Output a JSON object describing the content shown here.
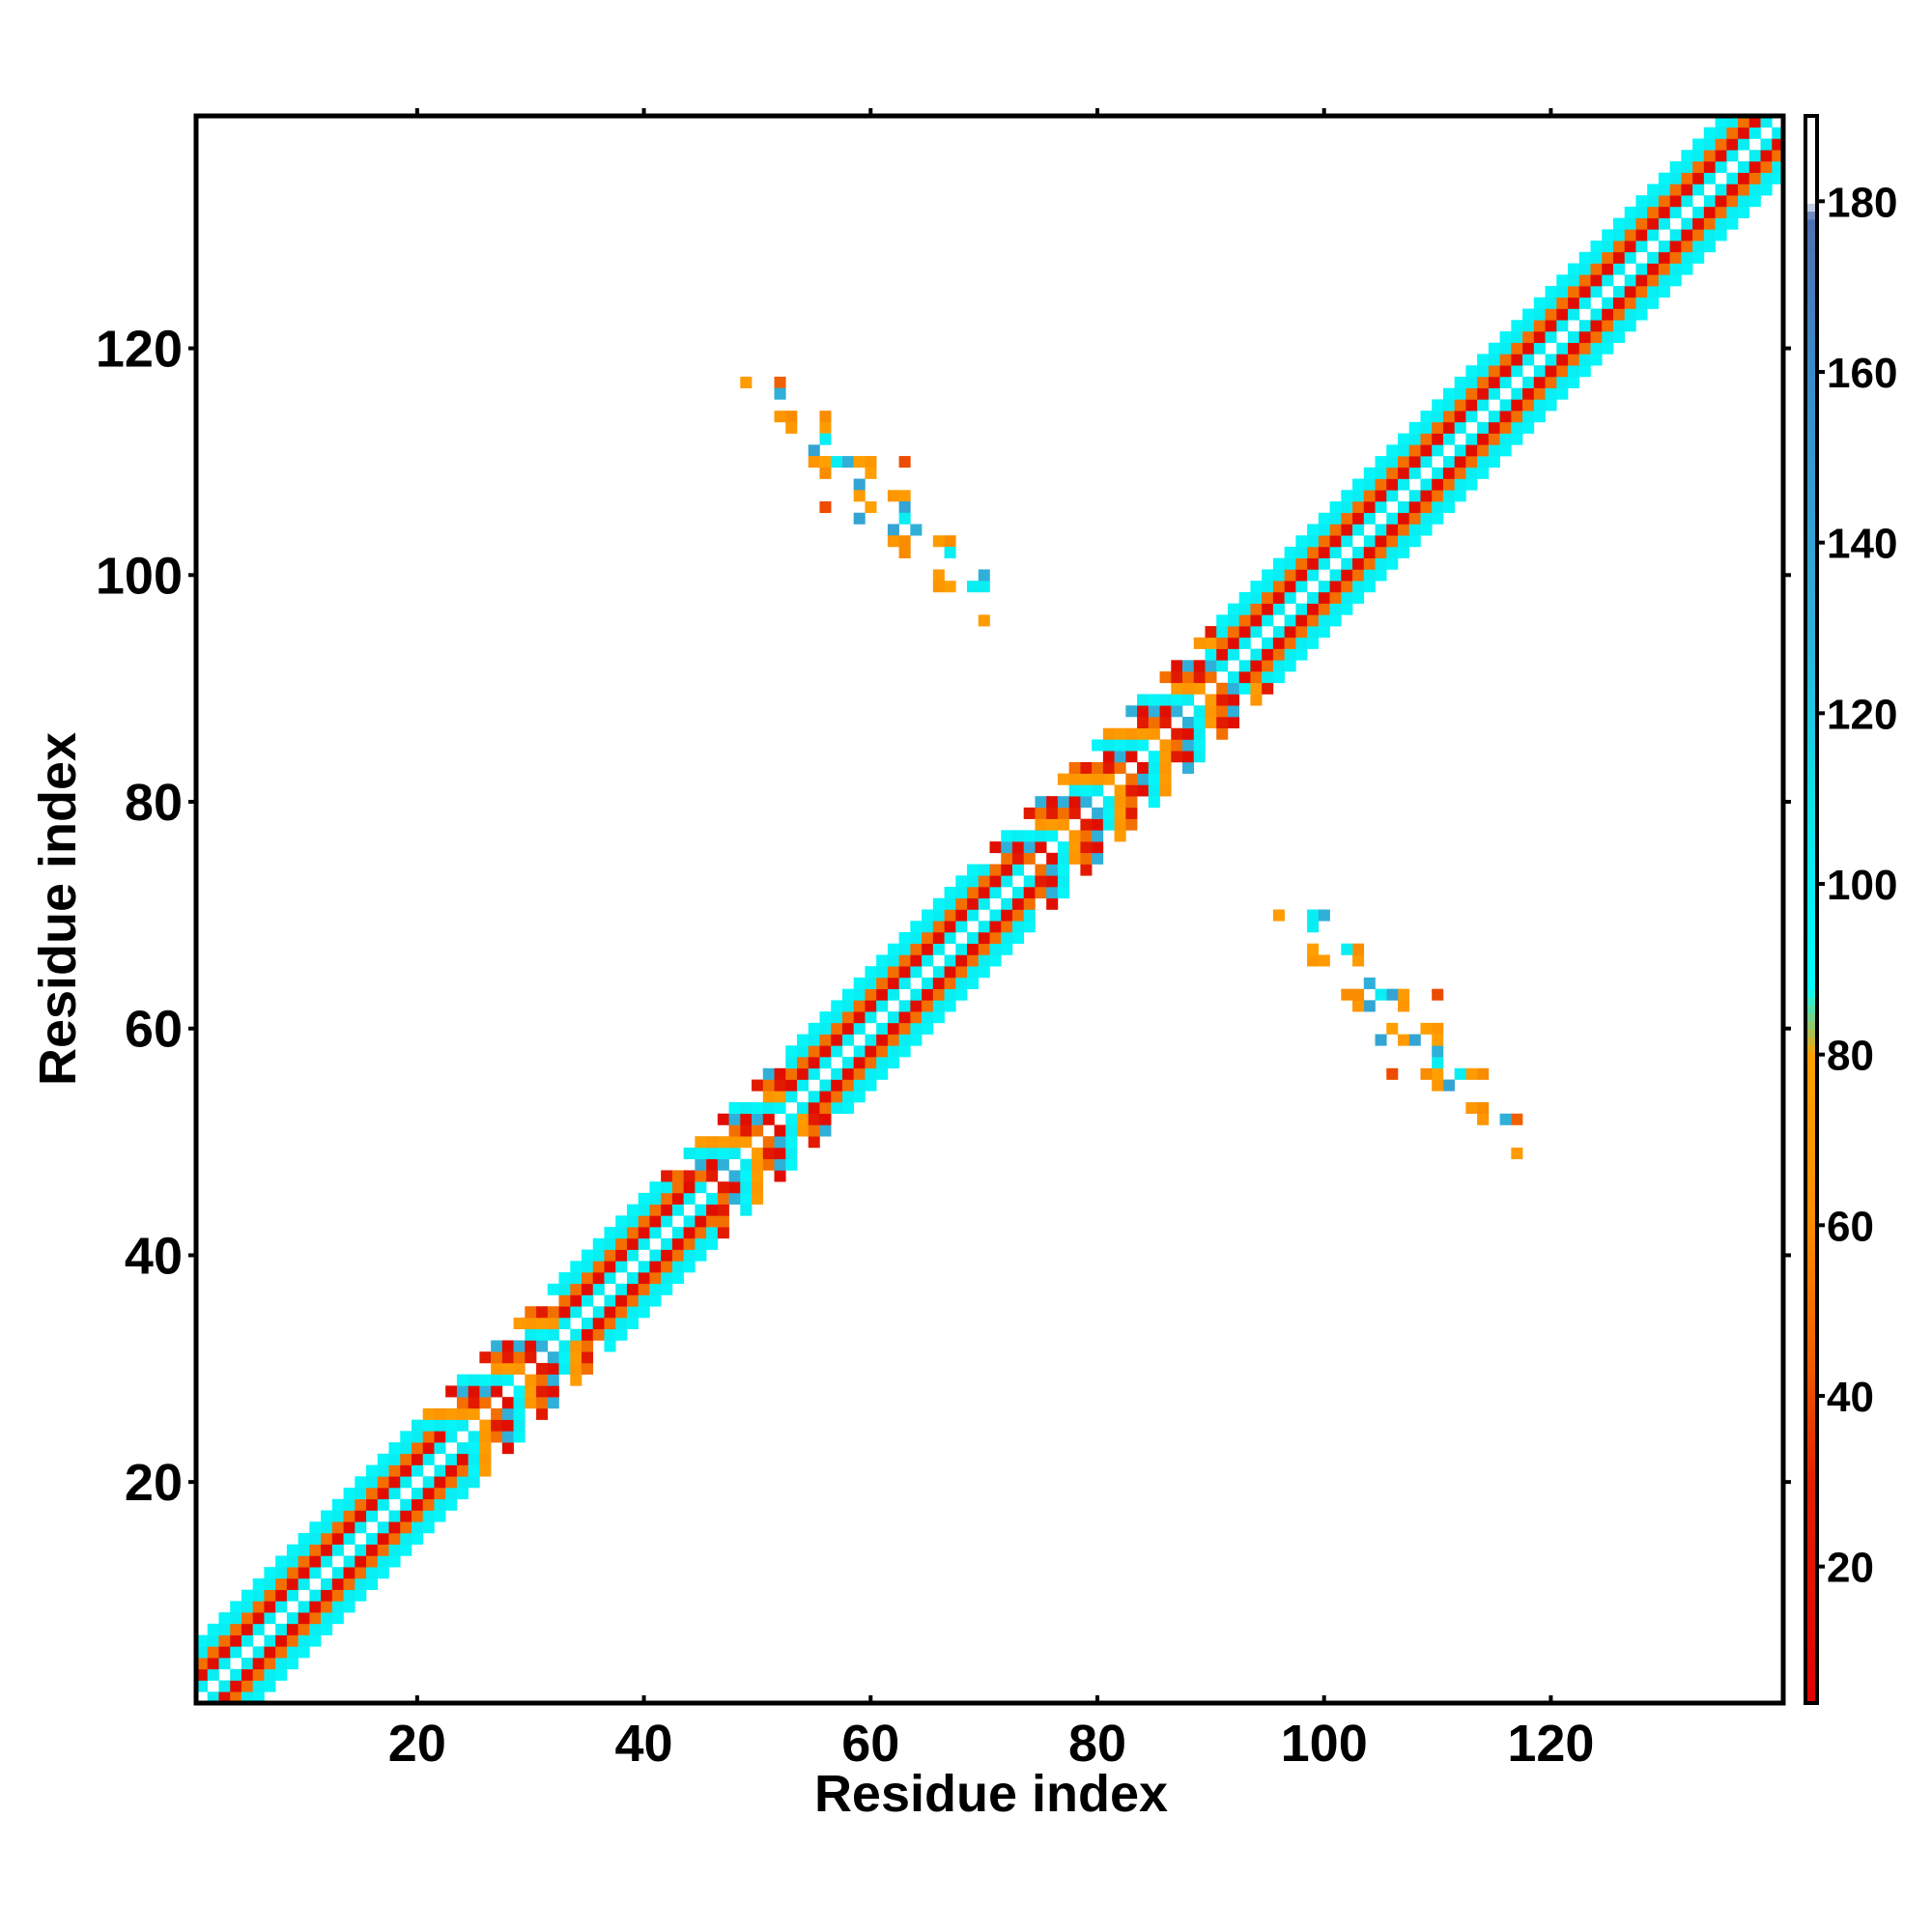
{
  "chart_data": {
    "type": "heatmap",
    "title": "",
    "xlabel": "Residue index",
    "ylabel": "Residue index",
    "xlim": [
      1,
      140
    ],
    "ylim": [
      1,
      140
    ],
    "x_ticks": [
      20,
      40,
      60,
      80,
      100,
      120
    ],
    "y_ticks": [
      20,
      40,
      60,
      80,
      100,
      120
    ],
    "grid": false,
    "colorbar": {
      "range": [
        4,
        190
      ],
      "ticks": [
        20,
        40,
        60,
        80,
        100,
        120,
        140,
        160,
        180
      ],
      "stops": [
        {
          "value": 4,
          "color": "#e00000"
        },
        {
          "value": 30,
          "color": "#e32000"
        },
        {
          "value": 45,
          "color": "#f06000"
        },
        {
          "value": 60,
          "color": "#fa8c00"
        },
        {
          "value": 80,
          "color": "#ffa000"
        },
        {
          "value": 88,
          "color": "#00ffff"
        },
        {
          "value": 110,
          "color": "#10e0e8"
        },
        {
          "value": 130,
          "color": "#30b0d8"
        },
        {
          "value": 160,
          "color": "#3a8cc8"
        },
        {
          "value": 178,
          "color": "#5070b0"
        },
        {
          "value": 180,
          "color": "#ffffff"
        },
        {
          "value": 190,
          "color": "#ffffff"
        }
      ]
    },
    "diagonal_band": {
      "residue_range": [
        1,
        140
      ],
      "offsets": [
        {
          "offset": 1,
          "value": 100
        },
        {
          "offset": 2,
          "value": 15
        },
        {
          "offset": 3,
          "value": 50
        },
        {
          "offset": 4,
          "value": 100
        },
        {
          "offset": 5,
          "value": 95
        }
      ],
      "segments": [
        {
          "range": [
            1,
            24
          ],
          "type": "helix"
        },
        {
          "range": [
            25,
            32
          ],
          "type": "loop"
        },
        {
          "range": [
            33,
            46
          ],
          "type": "helix"
        },
        {
          "range": [
            47,
            52
          ],
          "type": "loop"
        },
        {
          "range": [
            53,
            74
          ],
          "type": "helix"
        },
        {
          "range": [
            75,
            90
          ],
          "type": "loop"
        },
        {
          "range": [
            91,
            140
          ],
          "type": "helix"
        }
      ]
    },
    "off_diagonal_contacts": [
      {
        "i": 49,
        "j": 117,
        "value": 75
      },
      {
        "i": 52,
        "j": 117,
        "value": 45
      },
      {
        "i": 52,
        "j": 116,
        "value": 130
      },
      {
        "i": 52,
        "j": 114,
        "value": 70
      },
      {
        "i": 53,
        "j": 114,
        "value": 60
      },
      {
        "i": 53,
        "j": 113,
        "value": 72
      },
      {
        "i": 56,
        "j": 114,
        "value": 60
      },
      {
        "i": 56,
        "j": 113,
        "value": 75
      },
      {
        "i": 56,
        "j": 112,
        "value": 100
      },
      {
        "i": 55,
        "j": 111,
        "value": 140
      },
      {
        "i": 55,
        "j": 110,
        "value": 70
      },
      {
        "i": 56,
        "j": 110,
        "value": 80
      },
      {
        "i": 56,
        "j": 109,
        "value": 60
      },
      {
        "i": 57,
        "j": 110,
        "value": 100
      },
      {
        "i": 58,
        "j": 110,
        "value": 130
      },
      {
        "i": 59,
        "j": 110,
        "value": 80
      },
      {
        "i": 60,
        "j": 110,
        "value": 70
      },
      {
        "i": 60,
        "j": 109,
        "value": 80
      },
      {
        "i": 59,
        "j": 108,
        "value": 140
      },
      {
        "i": 63,
        "j": 110,
        "value": 40
      },
      {
        "i": 56,
        "j": 106,
        "value": 40
      },
      {
        "i": 59,
        "j": 107,
        "value": 75
      },
      {
        "i": 60,
        "j": 106,
        "value": 80
      },
      {
        "i": 59,
        "j": 105,
        "value": 140
      },
      {
        "i": 62,
        "j": 107,
        "value": 70
      },
      {
        "i": 63,
        "j": 107,
        "value": 75
      },
      {
        "i": 63,
        "j": 106,
        "value": 140
      },
      {
        "i": 63,
        "j": 105,
        "value": 100
      },
      {
        "i": 62,
        "j": 104,
        "value": 140
      },
      {
        "i": 62,
        "j": 103,
        "value": 70
      },
      {
        "i": 63,
        "j": 103,
        "value": 60
      },
      {
        "i": 64,
        "j": 104,
        "value": 130
      },
      {
        "i": 63,
        "j": 102,
        "value": 60
      },
      {
        "i": 66,
        "j": 103,
        "value": 75
      },
      {
        "i": 67,
        "j": 103,
        "value": 60
      },
      {
        "i": 67,
        "j": 102,
        "value": 100
      },
      {
        "i": 66,
        "j": 100,
        "value": 75
      },
      {
        "i": 66,
        "j": 99,
        "value": 70
      },
      {
        "i": 67,
        "j": 99,
        "value": 80
      },
      {
        "i": 69,
        "j": 99,
        "value": 100
      },
      {
        "i": 70,
        "j": 99,
        "value": 100
      },
      {
        "i": 70,
        "j": 100,
        "value": 130
      },
      {
        "i": 70,
        "j": 96,
        "value": 75
      }
    ]
  }
}
